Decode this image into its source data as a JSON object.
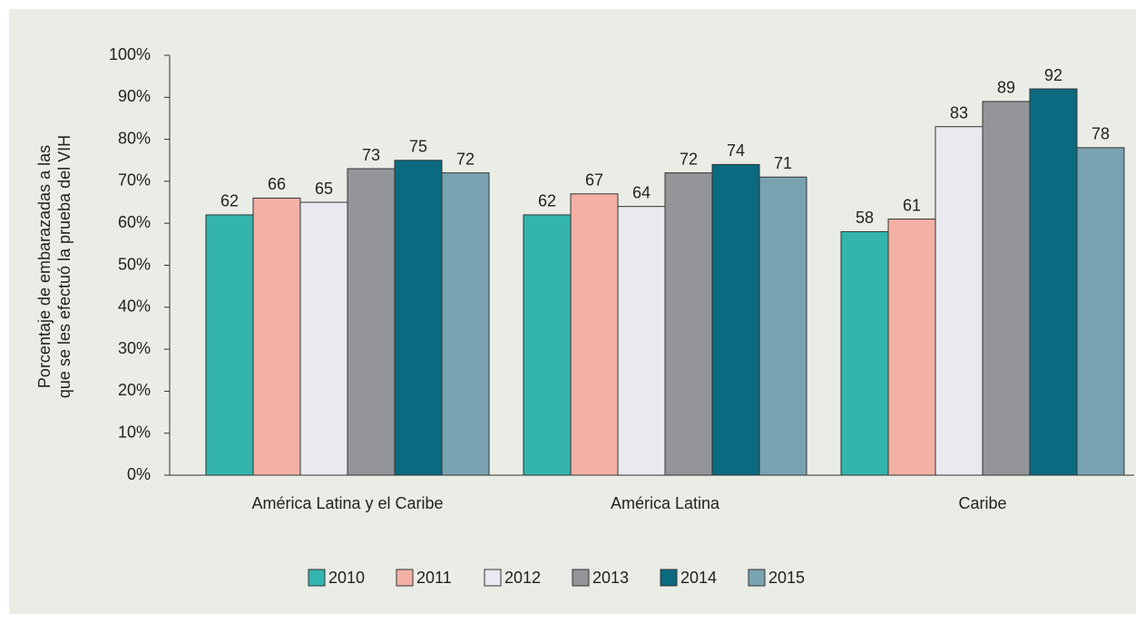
{
  "chart_data": {
    "type": "bar",
    "ylabel": [
      "Porcentaje de embarazadas a las",
      "que se les efectuó la prueba del VIH"
    ],
    "categories": [
      "América Latina y el Caribe",
      "América Latina",
      "Caribe"
    ],
    "series": [
      {
        "name": "2010",
        "color": "#33b5ae",
        "values": [
          62,
          62,
          58
        ]
      },
      {
        "name": "2011",
        "color": "#f4b0a4",
        "values": [
          66,
          67,
          61
        ]
      },
      {
        "name": "2012",
        "color": "#e9e9f0",
        "values": [
          65,
          64,
          83
        ]
      },
      {
        "name": "2013",
        "color": "#939598",
        "values": [
          73,
          72,
          89
        ]
      },
      {
        "name": "2014",
        "color": "#0a6a80",
        "values": [
          75,
          74,
          92
        ]
      },
      {
        "name": "2015",
        "color": "#7aa3b1",
        "values": [
          72,
          71,
          78
        ]
      }
    ],
    "ylim": [
      0,
      100
    ],
    "yticks": [
      {
        "value": 0,
        "label": "0%"
      },
      {
        "value": 10,
        "label": "10%"
      },
      {
        "value": 20,
        "label": "20%"
      },
      {
        "value": 30,
        "label": "30%"
      },
      {
        "value": 40,
        "label": "40%"
      },
      {
        "value": 50,
        "label": "50%"
      },
      {
        "value": 60,
        "label": "60%"
      },
      {
        "value": 70,
        "label": "70%"
      },
      {
        "value": 80,
        "label": "80%"
      },
      {
        "value": 90,
        "label": "90%"
      },
      {
        "value": 100,
        "label": "100%"
      }
    ],
    "legend": "bottom"
  }
}
